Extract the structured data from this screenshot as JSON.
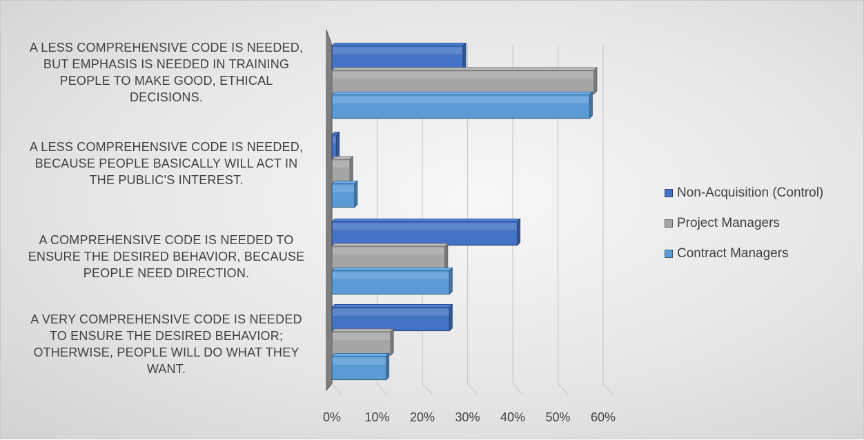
{
  "chart_data": {
    "type": "bar",
    "orientation": "horizontal",
    "categories": [
      "A LESS COMPREHENSIVE CODE IS NEEDED, BUT EMPHASIS IS NEEDED IN TRAINING PEOPLE TO MAKE GOOD, ETHICAL DECISIONS.",
      "A LESS COMPREHENSIVE CODE IS NEEDED, BECAUSE PEOPLE BASICALLY WILL ACT IN THE PUBLIC'S INTEREST.",
      "A COMPREHENSIVE CODE IS NEEDED TO ENSURE THE DESIRED BEHAVIOR, BECAUSE PEOPLE NEED DIRECTION.",
      "A VERY COMPREHENSIVE CODE IS NEEDED TO ENSURE THE DESIRED BEHAVIOR; OTHERWISE, PEOPLE WILL DO WHAT THEY WANT."
    ],
    "series": [
      {
        "name": "Non-Acquisition (Control)",
        "color": "#4472c4",
        "values": [
          29,
          1,
          41,
          26
        ]
      },
      {
        "name": "Project Managers",
        "color": "#a5a5a5",
        "values": [
          58,
          4,
          25,
          13
        ]
      },
      {
        "name": "Contract Managers",
        "color": "#5b9bd5",
        "values": [
          57,
          5,
          26,
          12
        ]
      }
    ],
    "xlim": [
      0,
      60
    ],
    "xticks": [
      "0%",
      "10%",
      "20%",
      "30%",
      "40%",
      "50%",
      "60%"
    ],
    "legend_position": "right",
    "grid": true
  },
  "category_lines": [
    [
      "A LESS COMPREHENSIVE CODE IS NEEDED,",
      "BUT EMPHASIS IS NEEDED IN TRAINING",
      "PEOPLE TO MAKE GOOD, ETHICAL",
      "DECISIONS."
    ],
    [
      "A LESS COMPREHENSIVE CODE IS NEEDED,",
      "BECAUSE PEOPLE BASICALLY WILL ACT IN",
      "THE PUBLIC'S INTEREST."
    ],
    [
      "A COMPREHENSIVE CODE IS NEEDED TO",
      "ENSURE THE DESIRED BEHAVIOR, BECAUSE",
      "PEOPLE NEED DIRECTION."
    ],
    [
      "A VERY COMPREHENSIVE CODE IS NEEDED",
      "TO ENSURE THE DESIRED BEHAVIOR;",
      "OTHERWISE, PEOPLE WILL DO WHAT THEY",
      "WANT."
    ]
  ]
}
